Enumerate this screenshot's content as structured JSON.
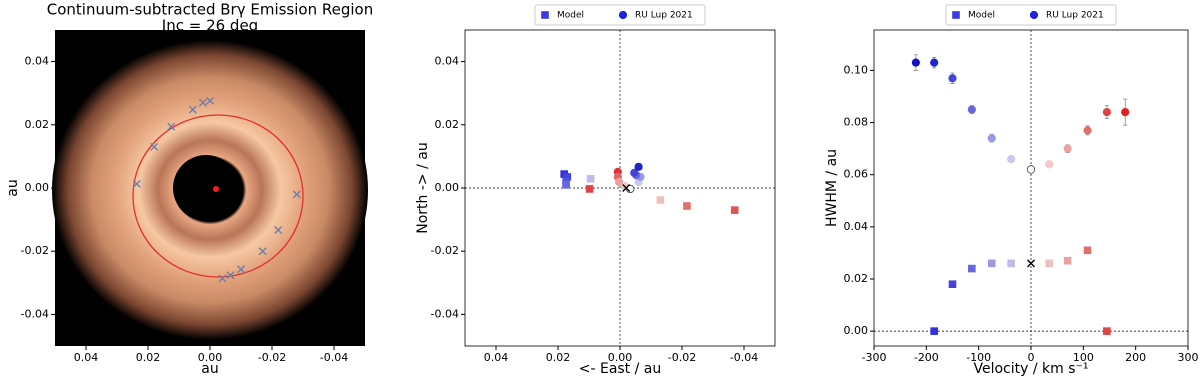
{
  "chart_data": [
    {
      "type": "image",
      "title": "Continuum-subtracted Brγ Emission Region",
      "subtitle": "Inc = 26 deg",
      "x_label": "au",
      "y_label": "au",
      "xlim": [
        0.05,
        -0.05
      ],
      "ylim": [
        -0.05,
        0.05
      ],
      "xticks": [
        0.04,
        0.02,
        {
          "value": 0,
          "label": "0.00"
        },
        -0.02,
        -0.04
      ],
      "yticks": [
        -0.04,
        -0.02,
        {
          "value": 0,
          "label": "0.00"
        },
        0.02,
        0.04
      ],
      "series": [
        {
          "marker": "x",
          "color": "#6a7fb0",
          "x": [
            0.0236,
            0.018,
            0.0125,
            0.0056,
            0.0023,
            0.0,
            -0.028,
            -0.022,
            -0.017,
            -0.01,
            -0.0066,
            -0.004
          ],
          "y": [
            0.0013,
            0.013,
            0.0194,
            0.0248,
            0.027,
            0.0276,
            -0.002,
            -0.0133,
            -0.02,
            -0.0257,
            -0.0276,
            -0.0286
          ]
        }
      ]
    },
    {
      "type": "scatter",
      "x_label": "<- East / au",
      "y_label": "North -> / au",
      "xlim": [
        0.05,
        -0.05
      ],
      "ylim": [
        -0.05,
        0.05
      ],
      "xticks": [
        0.04,
        0.02,
        {
          "value": 0,
          "label": "0.00"
        },
        -0.02,
        -0.04
      ],
      "yticks": [
        -0.04,
        -0.02,
        {
          "value": 0,
          "label": "0.00"
        },
        0.02,
        0.04
      ],
      "zero_lines": true,
      "legend": "top",
      "center_marker": {
        "x": -0.002,
        "y": 0
      },
      "series": [
        {
          "name": "Model",
          "marker": "square",
          "color": "#3b3be0",
          "x": [
            0.018,
            0.017,
            0.0174,
            0.0174,
            0.0095,
            0.0098,
            -0.013,
            -0.0216,
            -0.037
          ],
          "y": [
            0.0044,
            0.0035,
            0.0019,
            0.001,
            0.0029,
            -0.0003,
            -0.0038,
            -0.0057,
            -0.007
          ],
          "colors": [
            "#3333dd",
            "#4444dd",
            "#5555dd",
            "#6666dd",
            "#bbbbee",
            "#dd4444",
            "#f0c0c0",
            "#e07070",
            "#dd5555"
          ]
        },
        {
          "name": "RU Lup 2021",
          "marker": "circle",
          "color": "#2222dd",
          "x": [
            0.0007,
            0.0007,
            0.0003,
            -0.0016,
            -0.0033,
            -0.006,
            -0.0066,
            -0.0052,
            -0.0046,
            -0.006
          ],
          "y": [
            0.0051,
            0.0035,
            0.0019,
            0.0006,
            -0.0003,
            0.0019,
            0.0035,
            0.0041,
            0.0048,
            0.0067
          ],
          "colors": [
            "#dd3333",
            "#e06666",
            "#eaa0a0",
            "#f0c8c8",
            "#ffffff",
            "#c8c8f0",
            "#9999e6",
            "#6666dd",
            "#4444dd",
            "#2222cc"
          ]
        }
      ]
    },
    {
      "type": "scatter",
      "x_label": "Velocity / km s⁻¹",
      "y_label": "HWHM / au",
      "xlim": [
        -300,
        300
      ],
      "ylim": [
        -0.0057,
        0.1155
      ],
      "xticks": [
        -300,
        -200,
        -100,
        0,
        100,
        200,
        300
      ],
      "yticks": [
        {
          "value": 0,
          "label": "0.00"
        },
        0.02,
        0.04,
        0.06,
        0.08,
        {
          "value": 0.1,
          "label": "0.10"
        }
      ],
      "zero_lines": true,
      "legend": "top",
      "center_marker": {
        "x": 0,
        "y": 0.026
      },
      "series": [
        {
          "name": "Model",
          "marker": "square",
          "color": "#3b3be0",
          "x": [
            -185,
            -150,
            -113,
            -75,
            -38,
            35,
            70,
            108,
            145
          ],
          "y": [
            0.0,
            0.018,
            0.024,
            0.026,
            0.026,
            0.026,
            0.027,
            0.031,
            0.0
          ],
          "colors": [
            "#3333dd",
            "#4444dd",
            "#6666dd",
            "#9999e6",
            "#bbbbee",
            "#f0c0c0",
            "#eaa0a0",
            "#e07070",
            "#dd4444"
          ]
        },
        {
          "name": "RU Lup 2021",
          "marker": "circle",
          "color": "#2222dd",
          "x": [
            -220,
            -185,
            -150,
            -113,
            -75,
            -38,
            0,
            35,
            70,
            108,
            145,
            180
          ],
          "y": [
            0.103,
            0.103,
            0.097,
            0.085,
            0.074,
            0.066,
            0.062,
            0.064,
            0.07,
            0.077,
            0.084,
            0.084
          ],
          "errors": [
            0.003,
            0.002,
            0.002,
            0.0015,
            0.0015,
            0.001,
            0.001,
            0.001,
            0.0015,
            0.0017,
            0.0025,
            0.005
          ],
          "colors": [
            "#1111cc",
            "#2222cc",
            "#4444dd",
            "#6666dd",
            "#9999e6",
            "#c8c8f0",
            "#ffffff",
            "#f0c8c8",
            "#eaa0a0",
            "#e07070",
            "#dd4444",
            "#dd2222"
          ]
        }
      ]
    }
  ]
}
